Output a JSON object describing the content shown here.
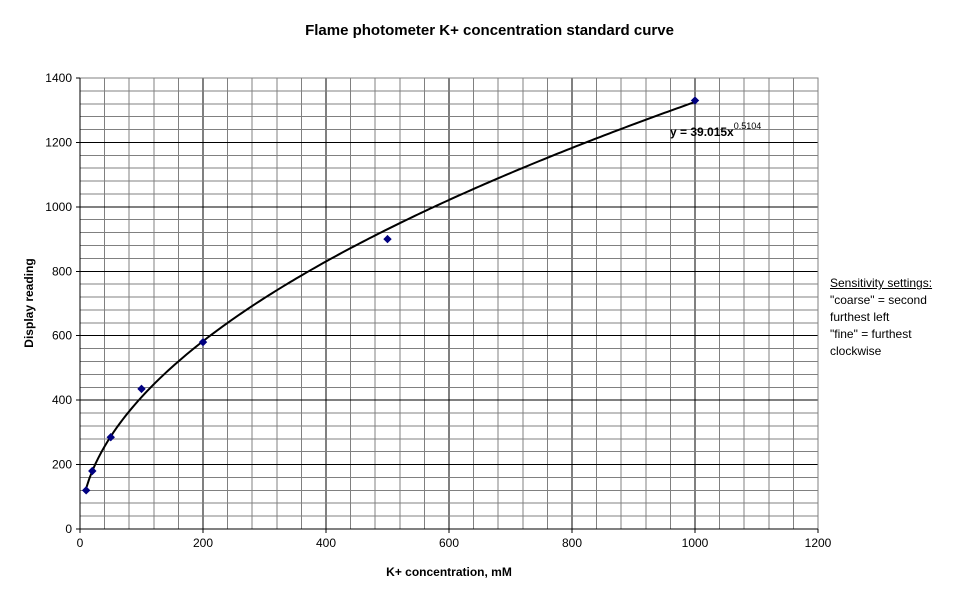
{
  "chart_data": {
    "type": "scatter",
    "title": "Flame photometer K+ concentration standard curve",
    "xlabel": "K+ concentration, mM",
    "ylabel": "Display reading",
    "xlim": [
      0,
      1200
    ],
    "ylim": [
      0,
      1400
    ],
    "xticks": [
      "0",
      "200",
      "400",
      "600",
      "800",
      "1000",
      "1200"
    ],
    "yticks": [
      "0",
      "200",
      "400",
      "600",
      "800",
      "1000",
      "1200",
      "1400"
    ],
    "grid": true,
    "series": [
      {
        "points": [
          {
            "x": 10,
            "y": 120
          },
          {
            "x": 20,
            "y": 180
          },
          {
            "x": 50,
            "y": 285
          },
          {
            "x": 100,
            "y": 435
          },
          {
            "x": 200,
            "y": 580
          },
          {
            "x": 500,
            "y": 900
          },
          {
            "x": 1000,
            "y": 1330
          }
        ],
        "marker_color": "#000080"
      }
    ],
    "trendline": {
      "type": "power",
      "coefficient": 39.015,
      "exponent": 0.5104,
      "equation_base": "y = 39.015x",
      "equation_exponent": "0.5104"
    }
  },
  "notes": {
    "heading": "Sensitivity settings:",
    "lines": [
      "\"coarse\" = second",
      "furthest left",
      "\"fine\" = furthest",
      "clockwise"
    ]
  }
}
